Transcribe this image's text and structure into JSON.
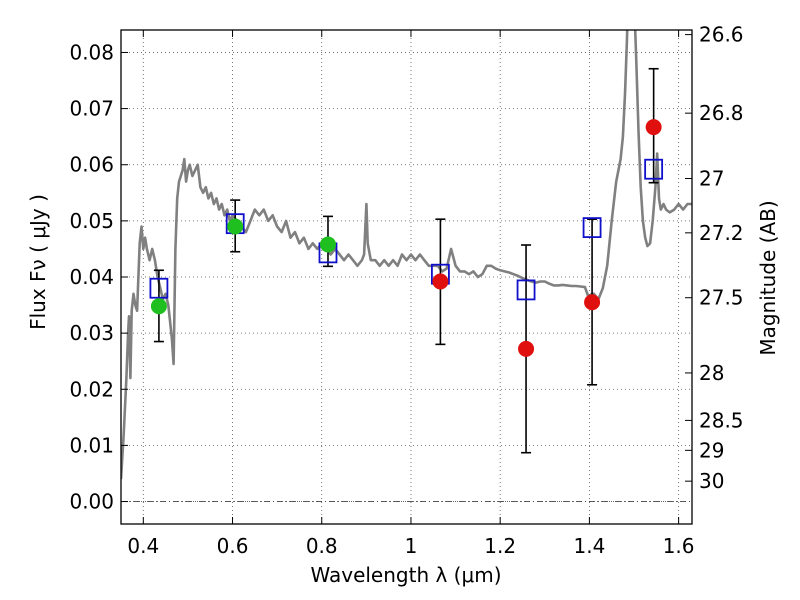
{
  "chart_data": {
    "type": "scatter",
    "xlabel": "Wavelength  λ (μm)",
    "ylabel": "Flux  Fν  ( μJy )",
    "ylabel_right": "Magnitude (AB)",
    "xlim": [
      0.35,
      1.63
    ],
    "ylim": [
      -0.004,
      0.084
    ],
    "grid": true,
    "x_ticks": [
      {
        "value": 0.4,
        "label": "0.4"
      },
      {
        "value": 0.6,
        "label": "0.6"
      },
      {
        "value": 0.8,
        "label": "0.8"
      },
      {
        "value": 1.0,
        "label": "1"
      },
      {
        "value": 1.2,
        "label": "1.2"
      },
      {
        "value": 1.4,
        "label": "1.4"
      },
      {
        "value": 1.6,
        "label": "1.6"
      }
    ],
    "y_ticks": [
      {
        "value": 0.0,
        "label": "0.00"
      },
      {
        "value": 0.01,
        "label": "0.01"
      },
      {
        "value": 0.02,
        "label": "0.02"
      },
      {
        "value": 0.03,
        "label": "0.03"
      },
      {
        "value": 0.04,
        "label": "0.04"
      },
      {
        "value": 0.05,
        "label": "0.05"
      },
      {
        "value": 0.06,
        "label": "0.06"
      },
      {
        "value": 0.07,
        "label": "0.07"
      },
      {
        "value": 0.08,
        "label": "0.08"
      }
    ],
    "mag_ticks": [
      {
        "value": 26.6,
        "label": "26.6"
      },
      {
        "value": 26.8,
        "label": "26.8"
      },
      {
        "value": 27.0,
        "label": "27"
      },
      {
        "value": 27.2,
        "label": "27.2"
      },
      {
        "value": 27.5,
        "label": "27.5"
      },
      {
        "value": 28.0,
        "label": "28"
      },
      {
        "value": 28.5,
        "label": "28.5"
      },
      {
        "value": 29.0,
        "label": "29"
      },
      {
        "value": 30.0,
        "label": "30"
      }
    ],
    "colors": {
      "model": "#808080",
      "green": "#1fbf1f",
      "red": "#e0100f",
      "box": "#1010cc",
      "errorbar": "#000000",
      "grid": "#555555"
    },
    "sed_model": [
      [
        0.35,
        0.004
      ],
      [
        0.356,
        0.012
      ],
      [
        0.362,
        0.022
      ],
      [
        0.366,
        0.03
      ],
      [
        0.368,
        0.033
      ],
      [
        0.371,
        0.022
      ],
      [
        0.374,
        0.034
      ],
      [
        0.378,
        0.037
      ],
      [
        0.382,
        0.035
      ],
      [
        0.386,
        0.034
      ],
      [
        0.392,
        0.046
      ],
      [
        0.396,
        0.049
      ],
      [
        0.4,
        0.045
      ],
      [
        0.404,
        0.047
      ],
      [
        0.408,
        0.045
      ],
      [
        0.414,
        0.043
      ],
      [
        0.42,
        0.045
      ],
      [
        0.426,
        0.043
      ],
      [
        0.432,
        0.04
      ],
      [
        0.438,
        0.038
      ],
      [
        0.444,
        0.036
      ],
      [
        0.45,
        0.037
      ],
      [
        0.456,
        0.035
      ],
      [
        0.46,
        0.032
      ],
      [
        0.464,
        0.029
      ],
      [
        0.468,
        0.0245
      ],
      [
        0.472,
        0.045
      ],
      [
        0.476,
        0.054
      ],
      [
        0.48,
        0.057
      ],
      [
        0.484,
        0.058
      ],
      [
        0.488,
        0.059
      ],
      [
        0.492,
        0.061
      ],
      [
        0.496,
        0.057
      ],
      [
        0.5,
        0.059
      ],
      [
        0.504,
        0.06
      ],
      [
        0.51,
        0.058
      ],
      [
        0.516,
        0.059
      ],
      [
        0.522,
        0.06
      ],
      [
        0.528,
        0.056
      ],
      [
        0.534,
        0.055
      ],
      [
        0.54,
        0.056
      ],
      [
        0.546,
        0.054
      ],
      [
        0.552,
        0.055
      ],
      [
        0.558,
        0.053
      ],
      [
        0.564,
        0.054
      ],
      [
        0.57,
        0.052
      ],
      [
        0.576,
        0.053
      ],
      [
        0.582,
        0.051
      ],
      [
        0.588,
        0.052
      ],
      [
        0.594,
        0.05
      ],
      [
        0.6,
        0.051
      ],
      [
        0.61,
        0.05
      ],
      [
        0.62,
        0.049
      ],
      [
        0.63,
        0.048
      ],
      [
        0.64,
        0.05
      ],
      [
        0.65,
        0.052
      ],
      [
        0.66,
        0.051
      ],
      [
        0.67,
        0.052
      ],
      [
        0.68,
        0.05
      ],
      [
        0.69,
        0.051
      ],
      [
        0.7,
        0.049
      ],
      [
        0.71,
        0.048
      ],
      [
        0.72,
        0.05
      ],
      [
        0.73,
        0.047
      ],
      [
        0.74,
        0.048
      ],
      [
        0.75,
        0.046
      ],
      [
        0.76,
        0.047
      ],
      [
        0.77,
        0.045
      ],
      [
        0.78,
        0.046
      ],
      [
        0.79,
        0.045
      ],
      [
        0.8,
        0.046
      ],
      [
        0.81,
        0.045
      ],
      [
        0.82,
        0.044
      ],
      [
        0.83,
        0.045
      ],
      [
        0.84,
        0.044
      ],
      [
        0.85,
        0.043
      ],
      [
        0.86,
        0.044
      ],
      [
        0.87,
        0.043
      ],
      [
        0.88,
        0.042
      ],
      [
        0.89,
        0.043
      ],
      [
        0.895,
        0.044
      ],
      [
        0.9,
        0.053
      ],
      [
        0.903,
        0.046
      ],
      [
        0.91,
        0.043
      ],
      [
        0.92,
        0.043
      ],
      [
        0.93,
        0.042
      ],
      [
        0.94,
        0.043
      ],
      [
        0.95,
        0.042
      ],
      [
        0.96,
        0.043
      ],
      [
        0.97,
        0.042
      ],
      [
        0.98,
        0.044
      ],
      [
        0.99,
        0.043
      ],
      [
        1.0,
        0.044
      ],
      [
        1.01,
        0.043
      ],
      [
        1.02,
        0.044
      ],
      [
        1.03,
        0.043
      ],
      [
        1.04,
        0.042
      ],
      [
        1.05,
        0.042
      ],
      [
        1.06,
        0.042
      ],
      [
        1.07,
        0.041
      ],
      [
        1.08,
        0.0415
      ],
      [
        1.09,
        0.045
      ],
      [
        1.1,
        0.042
      ],
      [
        1.11,
        0.041
      ],
      [
        1.12,
        0.041
      ],
      [
        1.13,
        0.0405
      ],
      [
        1.14,
        0.041
      ],
      [
        1.15,
        0.04
      ],
      [
        1.16,
        0.0405
      ],
      [
        1.17,
        0.042
      ],
      [
        1.18,
        0.042
      ],
      [
        1.19,
        0.0415
      ],
      [
        1.2,
        0.0412
      ],
      [
        1.21,
        0.041
      ],
      [
        1.22,
        0.0408
      ],
      [
        1.23,
        0.0405
      ],
      [
        1.24,
        0.0402
      ],
      [
        1.25,
        0.0398
      ],
      [
        1.26,
        0.0395
      ],
      [
        1.27,
        0.0392
      ],
      [
        1.28,
        0.039
      ],
      [
        1.29,
        0.0392
      ],
      [
        1.3,
        0.0392
      ],
      [
        1.31,
        0.0388
      ],
      [
        1.32,
        0.0385
      ],
      [
        1.33,
        0.0385
      ],
      [
        1.34,
        0.0386
      ],
      [
        1.35,
        0.0385
      ],
      [
        1.36,
        0.0384
      ],
      [
        1.37,
        0.0384
      ],
      [
        1.38,
        0.0383
      ],
      [
        1.39,
        0.0382
      ],
      [
        1.4,
        0.036
      ],
      [
        1.405,
        0.037
      ],
      [
        1.41,
        0.037
      ],
      [
        1.42,
        0.036
      ],
      [
        1.43,
        0.038
      ],
      [
        1.44,
        0.042
      ],
      [
        1.45,
        0.05
      ],
      [
        1.46,
        0.057
      ],
      [
        1.47,
        0.061
      ],
      [
        1.475,
        0.065
      ],
      [
        1.48,
        0.073
      ],
      [
        1.484,
        0.082
      ],
      [
        1.487,
        0.09
      ],
      [
        1.5,
        0.09
      ],
      [
        1.505,
        0.079
      ],
      [
        1.51,
        0.066
      ],
      [
        1.515,
        0.056
      ],
      [
        1.52,
        0.05
      ],
      [
        1.525,
        0.047
      ],
      [
        1.53,
        0.0455
      ],
      [
        1.536,
        0.046
      ],
      [
        1.542,
        0.05
      ],
      [
        1.548,
        0.056
      ],
      [
        1.552,
        0.062
      ],
      [
        1.556,
        0.054
      ],
      [
        1.56,
        0.052
      ],
      [
        1.566,
        0.053
      ],
      [
        1.572,
        0.052
      ],
      [
        1.58,
        0.0515
      ],
      [
        1.59,
        0.052
      ],
      [
        1.6,
        0.053
      ],
      [
        1.61,
        0.052
      ],
      [
        1.62,
        0.053
      ],
      [
        1.63,
        0.053
      ]
    ],
    "model_boxes": [
      {
        "x": 0.435,
        "y": 0.038
      },
      {
        "x": 0.606,
        "y": 0.0495
      },
      {
        "x": 0.814,
        "y": 0.0443
      },
      {
        "x": 1.066,
        "y": 0.0405
      },
      {
        "x": 1.258,
        "y": 0.0377
      },
      {
        "x": 1.406,
        "y": 0.0488
      },
      {
        "x": 1.544,
        "y": 0.0592
      }
    ],
    "detections": [
      {
        "x": 0.435,
        "y": 0.0348,
        "color": "green"
      },
      {
        "x": 0.606,
        "y": 0.049,
        "color": "green"
      },
      {
        "x": 0.814,
        "y": 0.0458,
        "color": "green"
      }
    ],
    "other_points": [
      {
        "x": 1.066,
        "y": 0.0392,
        "color": "red"
      },
      {
        "x": 1.258,
        "y": 0.0272,
        "color": "red"
      },
      {
        "x": 1.406,
        "y": 0.0355,
        "color": "red"
      },
      {
        "x": 1.544,
        "y": 0.0667,
        "color": "red"
      }
    ],
    "error_bars": [
      {
        "x": 0.435,
        "low": 0.0285,
        "high": 0.0412
      },
      {
        "x": 0.606,
        "low": 0.0445,
        "high": 0.0537
      },
      {
        "x": 0.814,
        "low": 0.0419,
        "high": 0.0508
      },
      {
        "x": 1.066,
        "low": 0.028,
        "high": 0.0503
      },
      {
        "x": 1.258,
        "low": 0.0087,
        "high": 0.0457
      },
      {
        "x": 1.406,
        "low": 0.0208,
        "high": 0.0503
      },
      {
        "x": 1.544,
        "low": 0.0568,
        "high": 0.0771
      }
    ]
  }
}
